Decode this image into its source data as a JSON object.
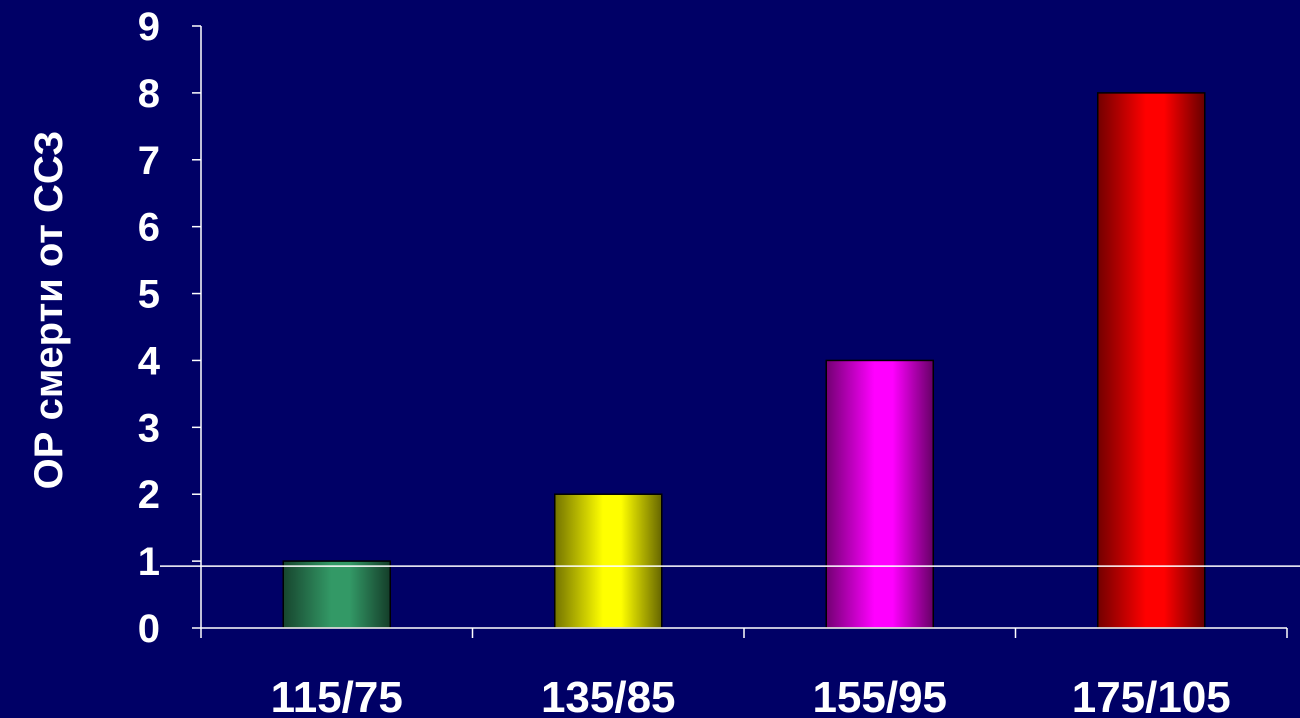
{
  "chart_data": {
    "type": "bar",
    "categories": [
      "115/75",
      "135/85",
      "155/95",
      "175/105"
    ],
    "values": [
      1,
      2,
      4,
      8
    ],
    "ylabel": "ОР смерти от ССЗ",
    "xlabel": "",
    "ylim": [
      0,
      9
    ],
    "yticks": [
      0,
      1,
      2,
      3,
      4,
      5,
      6,
      7,
      8,
      9
    ],
    "reference_line": 1,
    "bar_colors": [
      "#339966",
      "#ffff00",
      "#ff00ff",
      "#ff0000"
    ],
    "background_color": "#000066",
    "axis_color": "#ffffff",
    "grid": false,
    "legend": false
  }
}
